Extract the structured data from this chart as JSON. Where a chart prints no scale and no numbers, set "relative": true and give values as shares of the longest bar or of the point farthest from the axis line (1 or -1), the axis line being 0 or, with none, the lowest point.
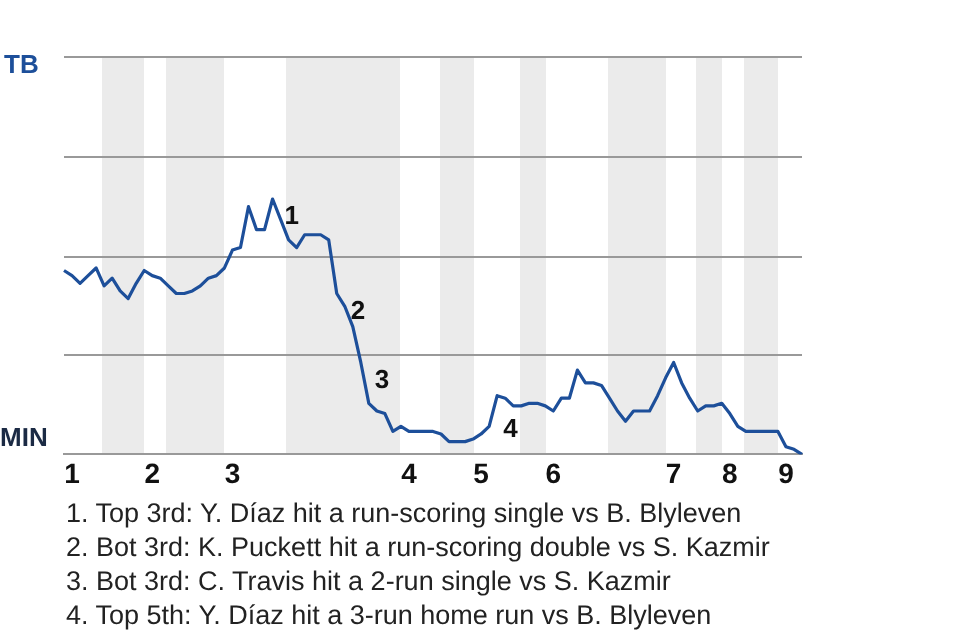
{
  "chart_data": {
    "type": "line",
    "relative": true,
    "categories": [
      null,
      "1",
      null,
      null,
      null,
      null,
      null,
      null,
      null,
      null,
      null,
      "2",
      null,
      null,
      null,
      null,
      null,
      null,
      null,
      null,
      null,
      "3",
      null,
      null,
      null,
      null,
      null,
      null,
      null,
      null,
      null,
      null,
      null,
      null,
      null,
      null,
      null,
      null,
      null,
      null,
      null,
      null,
      null,
      "4",
      null,
      null,
      null,
      null,
      null,
      null,
      null,
      null,
      "5",
      null,
      null,
      null,
      null,
      null,
      null,
      null,
      null,
      "6",
      null,
      null,
      null,
      null,
      null,
      null,
      null,
      null,
      null,
      null,
      null,
      null,
      null,
      null,
      "7",
      null,
      null,
      null,
      null,
      null,
      null,
      "8",
      null,
      null,
      null,
      null,
      null,
      null,
      "9",
      null,
      null
    ],
    "legend": false,
    "marker": "none",
    "line_style": "solid",
    "series": [
      {
        "color": "#1d4f9a",
        "values": [
          0.72,
          0.7,
          0.67,
          0.7,
          0.73,
          0.66,
          0.69,
          0.64,
          0.61,
          0.67,
          0.72,
          0.7,
          0.69,
          0.66,
          0.63,
          0.63,
          0.64,
          0.66,
          0.69,
          0.7,
          0.73,
          0.8,
          0.81,
          0.97,
          0.88,
          0.88,
          1,
          0.92,
          0.84,
          0.81,
          0.86,
          0.86,
          0.86,
          0.84,
          0.63,
          0.58,
          0.5,
          0.36,
          0.2,
          0.17,
          0.16,
          0.09,
          0.11,
          0.09,
          0.09,
          0.09,
          0.09,
          0.08,
          0.05,
          0.05,
          0.05,
          0.06,
          0.08,
          0.11,
          0.23,
          0.22,
          0.19,
          0.19,
          0.2,
          0.2,
          0.19,
          0.17,
          0.22,
          0.22,
          0.33,
          0.28,
          0.28,
          0.27,
          0.22,
          0.17,
          0.13,
          0.17,
          0.17,
          0.17,
          0.23,
          0.3,
          0.36,
          0.28,
          0.22,
          0.17,
          0.19,
          0.19,
          0.2,
          0.16,
          0.11,
          0.09,
          0.09,
          0.09,
          0.09,
          0.09,
          0.03,
          0.02,
          0
        ]
      }
    ],
    "ref_lines": [
      {
        "axis": "y",
        "value": 0.39,
        "color": "#999999"
      },
      {
        "axis": "y",
        "value": 0.78,
        "color": "#999999"
      },
      {
        "axis": "y",
        "value": 1.17,
        "color": "#999999"
      },
      {
        "axis": "y",
        "value": 1.56,
        "color": "#999999"
      }
    ],
    "annotations": [
      "1",
      "2",
      "3",
      "4",
      "TB",
      "MIN",
      "1. Top 3rd: Y. Díaz hit a run-scoring single vs B. Blyleven",
      "2. Bot 3rd: K. Puckett hit a run-scoring double vs S. Kazmir",
      "3. Bot 3rd: C. Travis hit a 2-run single vs S. Kazmir",
      "4. Top 5th: Y. Díaz hit a 3-run home run vs B. Blyleven"
    ]
  }
}
